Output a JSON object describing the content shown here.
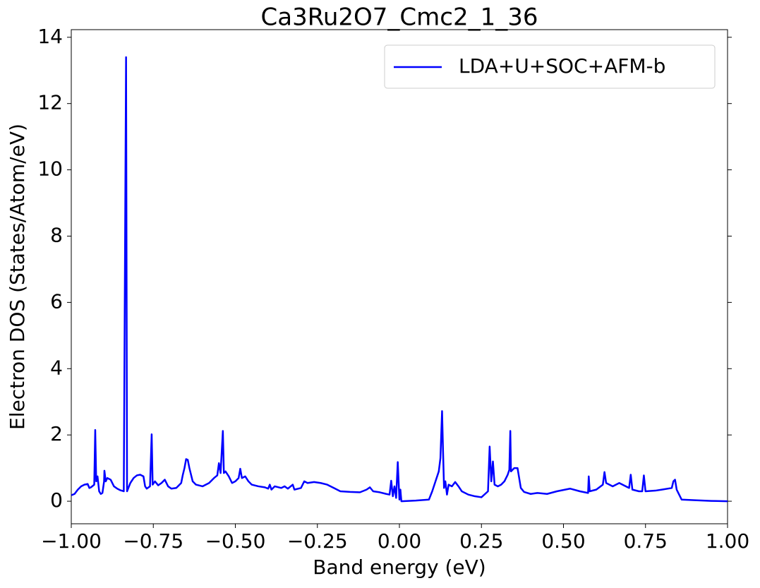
{
  "chart_data": {
    "type": "line",
    "title": "Ca3Ru2O7_Cmc2_1_36",
    "x_label": "Band energy (eV)",
    "y_label": "Electron DOS (States/Atom/eV)",
    "xlim": [
      -1,
      1
    ],
    "ylim": [
      -0.68,
      14.23
    ],
    "xticks": [
      {
        "value": -1,
        "label": "−1.00"
      },
      {
        "value": -0.75,
        "label": "−0.75"
      },
      {
        "value": -0.5,
        "label": "−0.50"
      },
      {
        "value": -0.25,
        "label": "−0.25"
      },
      {
        "value": 0,
        "label": "0.00"
      },
      {
        "value": 0.25,
        "label": "0.25"
      },
      {
        "value": 0.5,
        "label": "0.50"
      },
      {
        "value": 0.75,
        "label": "0.75"
      },
      {
        "value": 1,
        "label": "1.00"
      }
    ],
    "yticks": [
      0,
      2,
      4,
      6,
      8,
      10,
      12,
      14
    ],
    "legend_position": "upper right",
    "grid": false,
    "series": [
      {
        "name": "LDA+U+SOC+AFM-b",
        "color": "#0000ff",
        "x": [
          -1,
          -0.99,
          -0.98,
          -0.97,
          -0.96,
          -0.95,
          -0.945,
          -0.94,
          -0.93,
          -0.927,
          -0.924,
          -0.92,
          -0.915,
          -0.91,
          -0.905,
          -0.9,
          -0.899,
          -0.895,
          -0.89,
          -0.88,
          -0.87,
          -0.86,
          -0.85,
          -0.84,
          -0.833,
          -0.83,
          -0.82,
          -0.81,
          -0.8,
          -0.79,
          -0.78,
          -0.775,
          -0.77,
          -0.76,
          -0.755,
          -0.752,
          -0.745,
          -0.735,
          -0.725,
          -0.715,
          -0.705,
          -0.695,
          -0.68,
          -0.665,
          -0.66,
          -0.655,
          -0.65,
          -0.645,
          -0.64,
          -0.635,
          -0.63,
          -0.62,
          -0.6,
          -0.58,
          -0.565,
          -0.555,
          -0.55,
          -0.545,
          -0.538,
          -0.535,
          -0.53,
          -0.52,
          -0.51,
          -0.5,
          -0.49,
          -0.485,
          -0.48,
          -0.47,
          -0.46,
          -0.45,
          -0.43,
          -0.41,
          -0.4,
          -0.395,
          -0.39,
          -0.38,
          -0.36,
          -0.35,
          -0.34,
          -0.325,
          -0.32,
          -0.3,
          -0.29,
          -0.28,
          -0.26,
          -0.24,
          -0.22,
          -0.2,
          -0.18,
          -0.15,
          -0.12,
          -0.1,
          -0.09,
          -0.08,
          -0.06,
          -0.04,
          -0.03,
          -0.025,
          -0.02,
          -0.015,
          -0.01,
          -0.005,
          0,
          0.003,
          0.006,
          0.05,
          0.09,
          0.1,
          0.11,
          0.12,
          0.125,
          0.13,
          0.133,
          0.136,
          0.14,
          0.145,
          0.15,
          0.16,
          0.17,
          0.18,
          0.19,
          0.21,
          0.23,
          0.25,
          0.27,
          0.275,
          0.28,
          0.285,
          0.29,
          0.3,
          0.31,
          0.32,
          0.33,
          0.335,
          0.338,
          0.34,
          0.35,
          0.36,
          0.37,
          0.38,
          0.4,
          0.42,
          0.45,
          0.48,
          0.52,
          0.55,
          0.575,
          0.577,
          0.58,
          0.6,
          0.62,
          0.625,
          0.63,
          0.65,
          0.67,
          0.7,
          0.705,
          0.71,
          0.73,
          0.74,
          0.745,
          0.75,
          0.78,
          0.8,
          0.83,
          0.835,
          0.84,
          0.845,
          0.86,
          0.9,
          0.95,
          1
        ],
        "values": [
          0.18,
          0.22,
          0.35,
          0.45,
          0.5,
          0.52,
          0.4,
          0.42,
          0.5,
          2.15,
          0.6,
          0.75,
          0.3,
          0.22,
          0.25,
          0.6,
          0.92,
          0.6,
          0.7,
          0.65,
          0.45,
          0.38,
          0.33,
          0.3,
          13.4,
          0.3,
          0.55,
          0.7,
          0.78,
          0.8,
          0.75,
          0.45,
          0.38,
          0.45,
          2.02,
          0.5,
          0.6,
          0.48,
          0.55,
          0.65,
          0.45,
          0.38,
          0.4,
          0.55,
          0.8,
          1.0,
          1.27,
          1.25,
          1.0,
          0.8,
          0.6,
          0.5,
          0.45,
          0.55,
          0.7,
          0.78,
          1.15,
          0.85,
          2.12,
          0.85,
          0.9,
          0.75,
          0.55,
          0.6,
          0.7,
          0.98,
          0.7,
          0.75,
          0.6,
          0.5,
          0.45,
          0.42,
          0.38,
          0.5,
          0.35,
          0.45,
          0.4,
          0.45,
          0.38,
          0.5,
          0.35,
          0.4,
          0.6,
          0.55,
          0.58,
          0.55,
          0.5,
          0.4,
          0.3,
          0.28,
          0.27,
          0.35,
          0.42,
          0.3,
          0.27,
          0.22,
          0.2,
          0.62,
          0.15,
          0.45,
          0.1,
          1.18,
          0.05,
          0.35,
          0,
          0.02,
          0.05,
          0.3,
          0.6,
          0.9,
          1.3,
          2.72,
          1.5,
          0.4,
          0.6,
          0.2,
          0.5,
          0.45,
          0.58,
          0.45,
          0.3,
          0.2,
          0.15,
          0.12,
          0.3,
          1.65,
          0.6,
          1.2,
          0.5,
          0.45,
          0.5,
          0.6,
          0.8,
          0.95,
          2.12,
          0.9,
          1.0,
          1.0,
          0.4,
          0.28,
          0.22,
          0.25,
          0.22,
          0.3,
          0.38,
          0.3,
          0.25,
          0.75,
          0.3,
          0.35,
          0.5,
          0.88,
          0.55,
          0.45,
          0.55,
          0.4,
          0.8,
          0.35,
          0.3,
          0.3,
          0.78,
          0.3,
          0.32,
          0.35,
          0.4,
          0.6,
          0.65,
          0.35,
          0.05,
          0.03,
          0.01,
          0
        ]
      }
    ]
  }
}
